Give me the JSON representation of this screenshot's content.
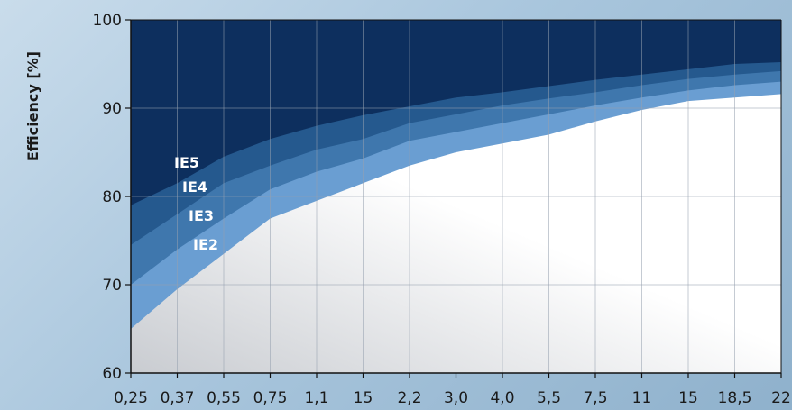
{
  "chart_data": {
    "type": "area",
    "title": "",
    "xlabel": "",
    "ylabel": "Efficiency [%]",
    "ylim": [
      60,
      100
    ],
    "grid": true,
    "categories": [
      "0,25",
      "0,37",
      "0,55",
      "0,75",
      "1,1",
      "15",
      "2,2",
      "3,0",
      "4,0",
      "5,5",
      "7,5",
      "11",
      "15",
      "18,5",
      "22"
    ],
    "yticks": [
      "60",
      "70",
      "80",
      "90",
      "100"
    ],
    "series": [
      {
        "name": "IE2",
        "color": "#ffffff",
        "values": [
          65,
          69.5,
          73.5,
          77.5,
          79.5,
          81.5,
          83.5,
          85,
          86,
          87,
          88.5,
          89.8,
          90.8,
          91.2,
          91.6
        ]
      },
      {
        "name": "IE3",
        "color": "#6a9ed2",
        "values": [
          70,
          74,
          77.5,
          80.8,
          82.8,
          84.3,
          86.3,
          87.3,
          88.3,
          89.3,
          90.3,
          91.2,
          92,
          92.6,
          93
        ]
      },
      {
        "name": "IE4",
        "color": "#3f77ad",
        "values": [
          74.5,
          78,
          81.5,
          83.5,
          85.3,
          86.5,
          88.3,
          89.3,
          90.3,
          91.1,
          91.8,
          92.6,
          93.3,
          93.8,
          94.2
        ]
      },
      {
        "name": "IE5",
        "color": "#25598e",
        "values": [
          79,
          81.5,
          84.5,
          86.5,
          88,
          89.2,
          90.2,
          91.2,
          91.8,
          92.5,
          93.2,
          93.8,
          94.4,
          95,
          95.2
        ]
      }
    ],
    "top_color": "#0d2f5e",
    "labels": [
      "IE5",
      "IE4",
      "IE3",
      "IE2"
    ]
  }
}
